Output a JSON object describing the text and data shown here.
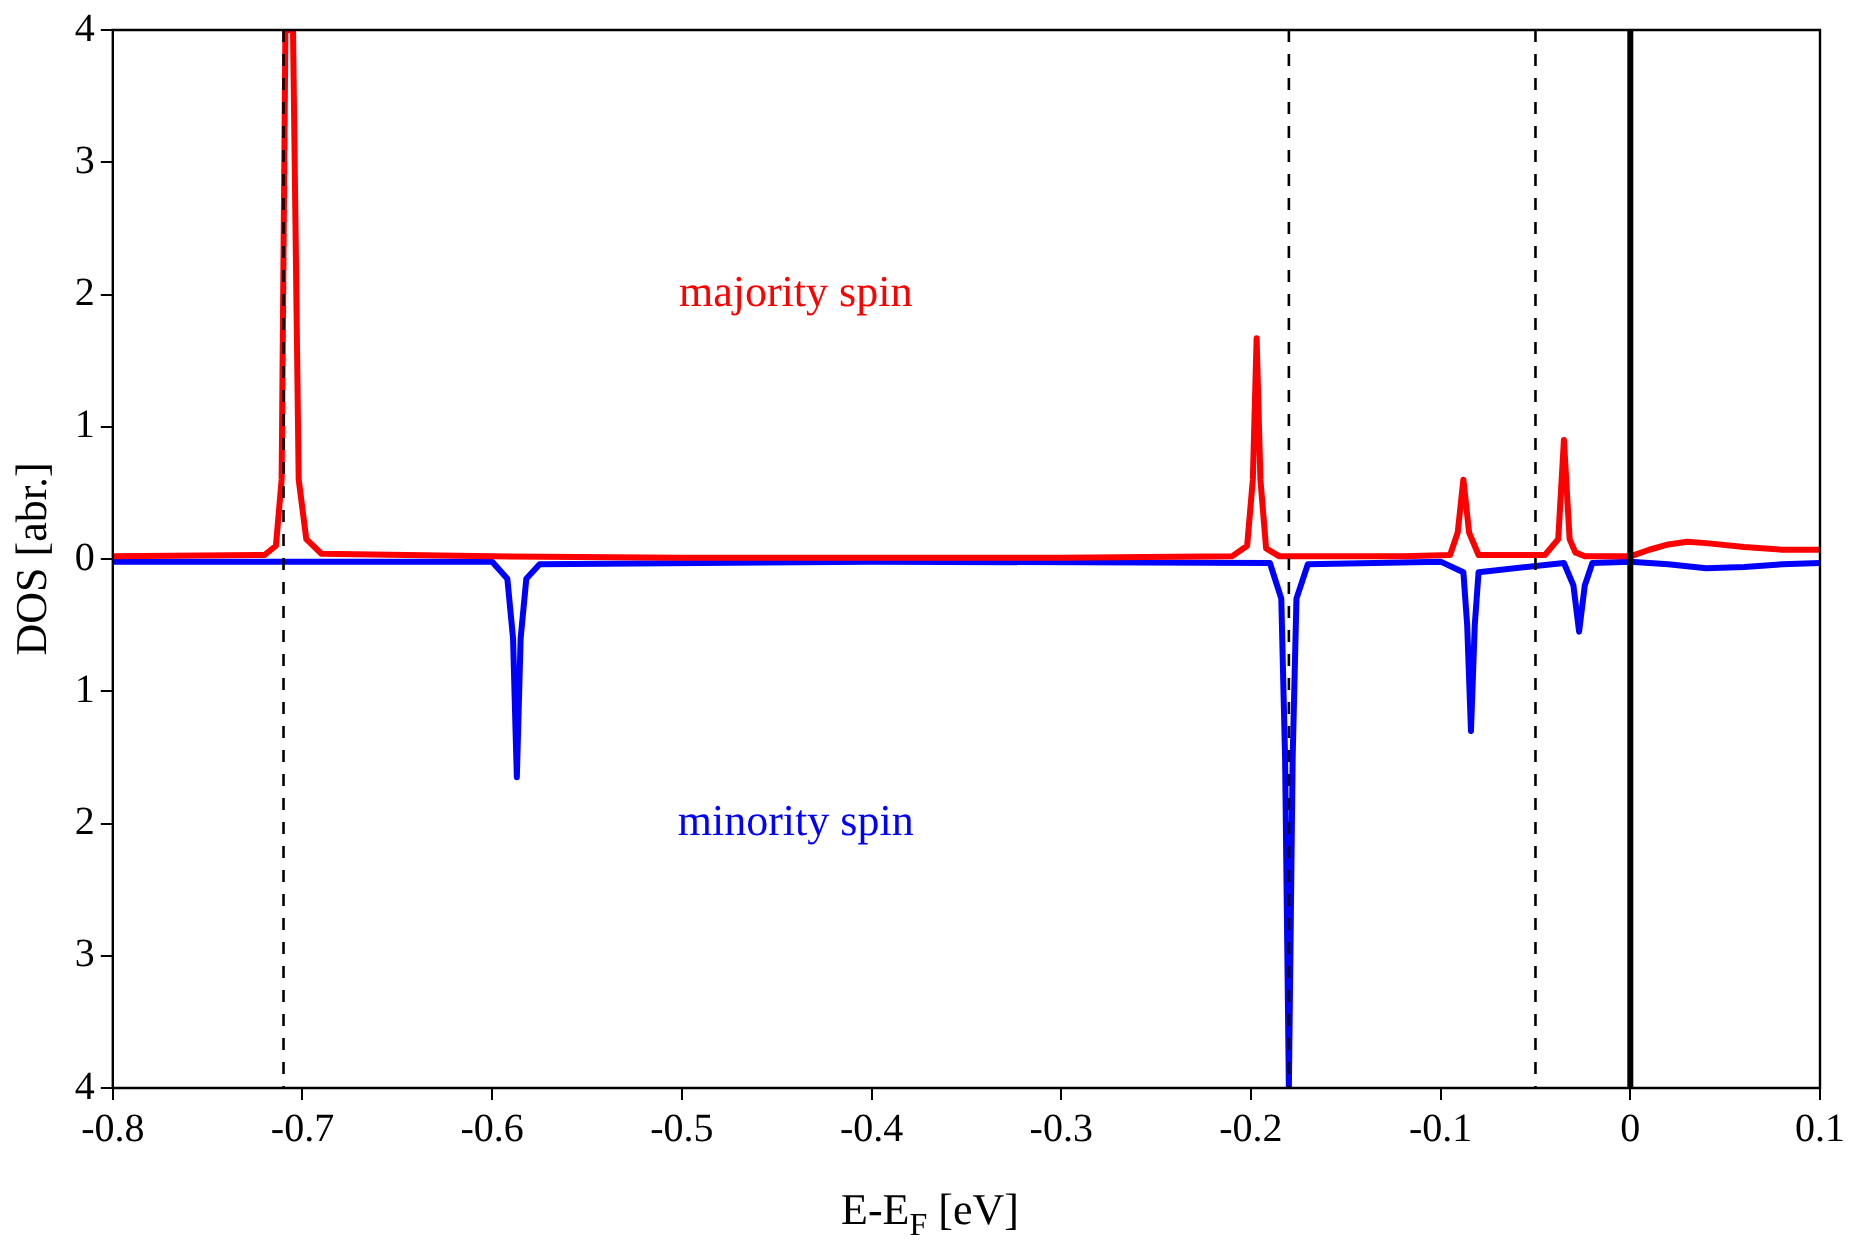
{
  "chart_data": {
    "type": "line",
    "xlabel": "E-E$_{F}$ [eV]",
    "ylabel": "DOS [abr.]",
    "xlim": [
      -0.8,
      0.1
    ],
    "xticks": [
      -0.8,
      -0.7,
      -0.6,
      -0.5,
      -0.4,
      -0.3,
      -0.2,
      -0.1,
      0,
      0.1
    ],
    "ylim": [
      -4,
      4
    ],
    "yticks": [
      {
        "value": -4,
        "label": "4"
      },
      {
        "value": -3,
        "label": "3"
      },
      {
        "value": -2,
        "label": "2"
      },
      {
        "value": -1,
        "label": "1"
      },
      0,
      1,
      2,
      3,
      4
    ],
    "grid": false,
    "legend": false,
    "marker": "none",
    "line_style": "solid",
    "series": [
      {
        "name": "majority spin",
        "color": "#ff0000",
        "x": [
          -0.8,
          -0.72,
          -0.714,
          -0.711,
          -0.709,
          -0.707,
          -0.705,
          -0.702,
          -0.698,
          -0.69,
          -0.6,
          -0.5,
          -0.3,
          -0.21,
          -0.202,
          -0.199,
          -0.197,
          -0.195,
          -0.192,
          -0.185,
          -0.12,
          -0.095,
          -0.091,
          -0.088,
          -0.085,
          -0.08,
          -0.045,
          -0.038,
          -0.035,
          -0.032,
          -0.029,
          -0.024,
          -0.01,
          0,
          0.01,
          0.02,
          0.03,
          0.04,
          0.06,
          0.08,
          0.1
        ],
        "values": [
          0.02,
          0.03,
          0.1,
          0.6,
          4,
          4,
          4,
          0.6,
          0.15,
          0.04,
          0.02,
          0.01,
          0.01,
          0.02,
          0.1,
          0.6,
          1.67,
          0.6,
          0.08,
          0.02,
          0.02,
          0.03,
          0.2,
          0.6,
          0.2,
          0.03,
          0.03,
          0.15,
          0.9,
          0.15,
          0.05,
          0.02,
          0.02,
          0.02,
          0.07,
          0.11,
          0.13,
          0.12,
          0.09,
          0.07,
          0.07
        ]
      },
      {
        "name": "minority spin",
        "color": "#0000ff",
        "x": [
          -0.8,
          -0.6,
          -0.592,
          -0.589,
          -0.587,
          -0.585,
          -0.582,
          -0.575,
          -0.4,
          -0.19,
          -0.184,
          -0.182,
          -0.18,
          -0.178,
          -0.176,
          -0.17,
          -0.1,
          -0.088,
          -0.086,
          -0.084,
          -0.082,
          -0.08,
          -0.035,
          -0.03,
          -0.027,
          -0.024,
          -0.02,
          0,
          0.02,
          0.04,
          0.06,
          0.08,
          0.1
        ],
        "values": [
          -0.02,
          -0.02,
          -0.15,
          -0.6,
          -1.65,
          -0.6,
          -0.15,
          -0.04,
          -0.02,
          -0.03,
          -0.3,
          -1.5,
          -4,
          -1.5,
          -0.3,
          -0.04,
          -0.02,
          -0.1,
          -0.5,
          -1.3,
          -0.5,
          -0.1,
          -0.03,
          -0.2,
          -0.55,
          -0.2,
          -0.03,
          -0.02,
          -0.04,
          -0.07,
          -0.06,
          -0.04,
          -0.03
        ]
      }
    ],
    "ref_lines": [
      {
        "axis": "x",
        "value": -0.71,
        "color": "#000000",
        "line_style": "dashed"
      },
      {
        "axis": "x",
        "value": -0.18,
        "color": "#000000",
        "line_style": "dashed"
      },
      {
        "axis": "x",
        "value": -0.05,
        "color": "#000000",
        "line_style": "dashed"
      },
      {
        "axis": "x",
        "value": 0,
        "color": "#000000",
        "line_style": "solid"
      }
    ]
  }
}
